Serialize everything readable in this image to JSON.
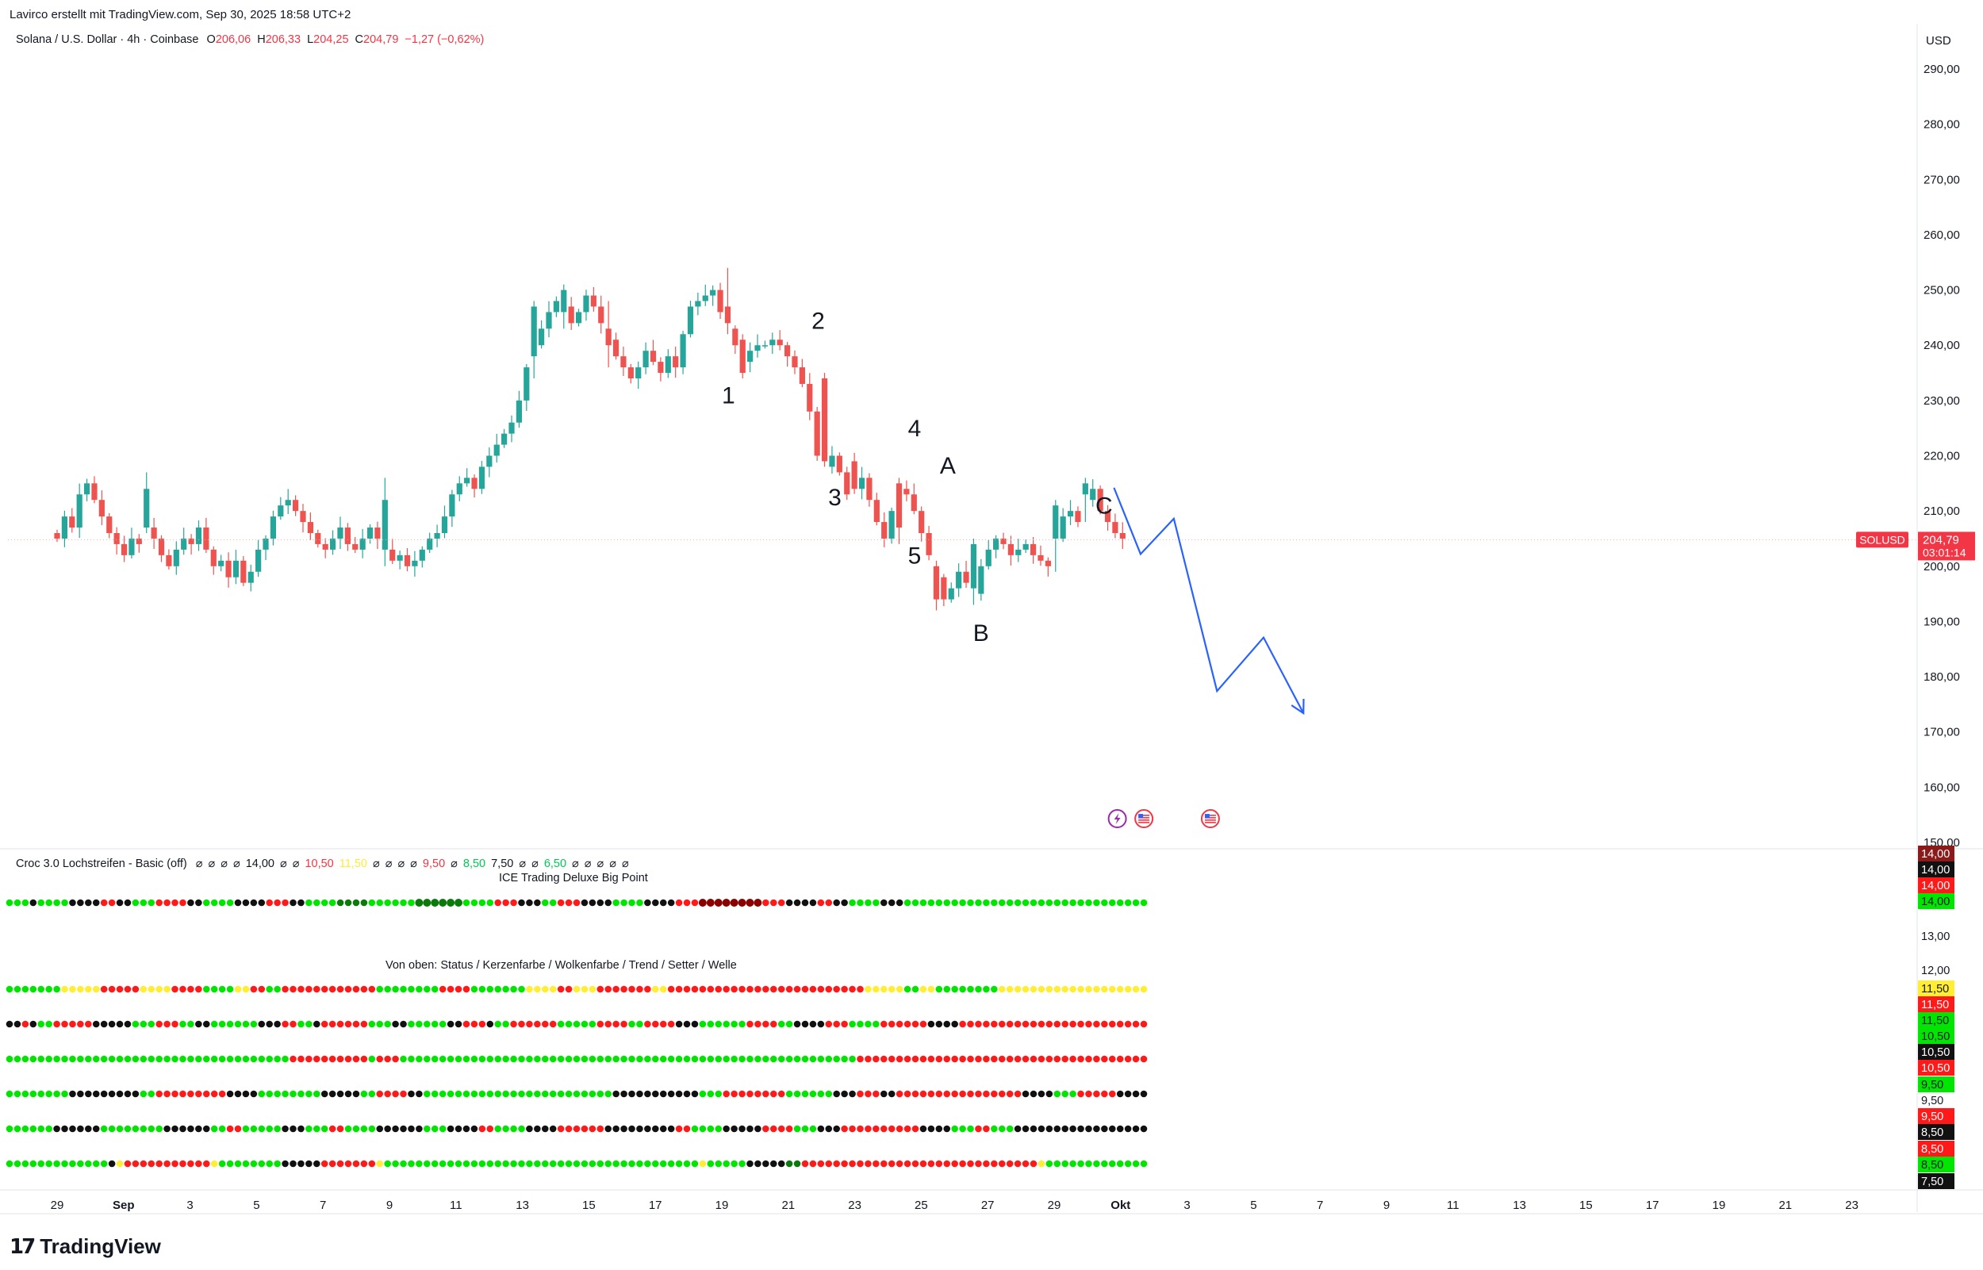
{
  "header": {
    "credit": "Lavirco erstellt mit TradingView.com, Sep 30, 2025 18:58 UTC+2",
    "symbol": "Solana / U.S. Dollar · 4h · Coinbase",
    "o_label": "O",
    "o_value": "206,06",
    "h_label": "H",
    "h_value": "206,33",
    "l_label": "L",
    "l_value": "204,25",
    "c_label": "C",
    "c_value": "204,79",
    "change": "−1,27 (−0,62%)"
  },
  "currency": "USD",
  "last_price": {
    "ticker": "SOLUSD",
    "price": "204,79",
    "countdown": "03:01:14"
  },
  "indicators": {
    "croc_label": "Croc 3.0 Lochstreifen - Basic (off)",
    "croc_params": [
      {
        "t": "⌀",
        "c": "#131722"
      },
      {
        "t": "⌀",
        "c": "#131722"
      },
      {
        "t": "⌀",
        "c": "#131722"
      },
      {
        "t": "⌀",
        "c": "#131722"
      },
      {
        "t": "14,00",
        "c": "#131722"
      },
      {
        "t": "⌀",
        "c": "#131722"
      },
      {
        "t": "⌀",
        "c": "#131722"
      },
      {
        "t": "10,50",
        "c": "#f23645"
      },
      {
        "t": "11,50",
        "c": "#ffeb3b"
      },
      {
        "t": "⌀",
        "c": "#131722"
      },
      {
        "t": "⌀",
        "c": "#131722"
      },
      {
        "t": "⌀",
        "c": "#131722"
      },
      {
        "t": "⌀",
        "c": "#131722"
      },
      {
        "t": "9,50",
        "c": "#f23645"
      },
      {
        "t": "⌀",
        "c": "#131722"
      },
      {
        "t": "8,50",
        "c": "#00c853"
      },
      {
        "t": "7,50",
        "c": "#131722"
      },
      {
        "t": "⌀",
        "c": "#131722"
      },
      {
        "t": "⌀",
        "c": "#131722"
      },
      {
        "t": "6,50",
        "c": "#00c853"
      },
      {
        "t": "⌀",
        "c": "#131722"
      },
      {
        "t": "⌀",
        "c": "#131722"
      },
      {
        "t": "⌀",
        "c": "#131722"
      },
      {
        "t": "⌀",
        "c": "#131722"
      },
      {
        "t": "⌀",
        "c": "#131722"
      }
    ],
    "ice_label": "ICE Trading Deluxe Big Point",
    "rows_label": "Von oben: Status / Kerzenfarbe / Wolkenfarbe / Trend / Setter / Welle"
  },
  "colors": {
    "up": "#26a69a",
    "down": "#ef5350",
    "wave_line": "#2962ff",
    "dot_green": "#00e600",
    "dot_red": "#ff1a1a",
    "dot_black": "#111111",
    "dot_yellow": "#ffee33",
    "dot_darkred": "#8b0000",
    "dot_darkgreen": "#0a7a0a"
  },
  "chart_data": {
    "type": "candlestick",
    "timeframe": "4h",
    "y_axis": {
      "ylim": [
        150,
        293
      ],
      "ticks": [
        "150,00",
        "160,00",
        "170,00",
        "180,00",
        "190,00",
        "200,00",
        "210,00",
        "220,00",
        "230,00",
        "240,00",
        "250,00",
        "260,00",
        "270,00",
        "280,00",
        "290,00"
      ]
    },
    "x_ticks": [
      "29",
      "Sep",
      "3",
      "5",
      "7",
      "9",
      "11",
      "13",
      "15",
      "17",
      "19",
      "21",
      "23",
      "25",
      "27",
      "29",
      "Okt",
      "3",
      "5",
      "7",
      "9",
      "11",
      "13",
      "15",
      "17",
      "19",
      "21",
      "23"
    ],
    "x_span_days": 57,
    "last_candle_day": 32.06,
    "closes": [
      205,
      209,
      207,
      213,
      215,
      212,
      209,
      206,
      204,
      202,
      205,
      204,
      207,
      205,
      202,
      200,
      203,
      205,
      204,
      207,
      203,
      200,
      201,
      198,
      201,
      197,
      199,
      203,
      205,
      209,
      211,
      212,
      210,
      208,
      206,
      204,
      203,
      205,
      207,
      204,
      203,
      205,
      207,
      205,
      203,
      201,
      202,
      200,
      201,
      203,
      205,
      206,
      209,
      213,
      215,
      216,
      214,
      218,
      220,
      222,
      224,
      226,
      230,
      236,
      240,
      243,
      246,
      248,
      247,
      244,
      246,
      249,
      247,
      244,
      241,
      238,
      236,
      234,
      236,
      239,
      237,
      235,
      238,
      236,
      242,
      247,
      248,
      249,
      250,
      246,
      243,
      240,
      237,
      239,
      240,
      240,
      241,
      240,
      238,
      236,
      233,
      228,
      220,
      218,
      220,
      217,
      219,
      214,
      216,
      212,
      208,
      205,
      210,
      214,
      213,
      210,
      206,
      202,
      198,
      194,
      196,
      199,
      197,
      195,
      200,
      203,
      205,
      204,
      202,
      203,
      204,
      202,
      201,
      200,
      205,
      209,
      210,
      208,
      212,
      214,
      210,
      208,
      206,
      205
    ],
    "manual_candles": {
      "12": [
        207,
        214,
        206,
        217
      ],
      "44": [
        203,
        212,
        200,
        216
      ],
      "64": [
        238,
        247,
        234,
        248
      ],
      "68": [
        246,
        250,
        243,
        251
      ],
      "74": [
        243,
        240,
        236,
        248
      ],
      "90": [
        247,
        244,
        242,
        254
      ],
      "92": [
        241,
        235,
        234,
        242
      ],
      "103": [
        234,
        219,
        218,
        235
      ],
      "106": [
        217,
        213,
        212,
        218
      ],
      "113": [
        215,
        207,
        204,
        216
      ],
      "118": [
        200,
        194,
        192,
        201
      ],
      "123": [
        196,
        204,
        193,
        205
      ],
      "134": [
        205,
        211,
        199,
        212
      ],
      "138": [
        213,
        215,
        208,
        216
      ]
    },
    "wave_labels": [
      {
        "text": "1",
        "day": 20.2,
        "price": 229.5
      },
      {
        "text": "2",
        "day": 22.9,
        "price": 243.0
      },
      {
        "text": "3",
        "day": 23.4,
        "price": 211.0
      },
      {
        "text": "4",
        "day": 25.8,
        "price": 223.5
      },
      {
        "text": "5",
        "day": 25.8,
        "price": 200.5
      },
      {
        "text": "A",
        "day": 26.8,
        "price": 216.8
      },
      {
        "text": "B",
        "day": 27.8,
        "price": 186.5
      },
      {
        "text": "C",
        "day": 31.5,
        "price": 209.5
      }
    ],
    "projection_path": [
      [
        31.8,
        214.2
      ],
      [
        32.6,
        202.2
      ],
      [
        33.6,
        208.6
      ],
      [
        34.9,
        177.4
      ],
      [
        36.3,
        187.1
      ],
      [
        37.5,
        173.4
      ]
    ],
    "event_markers": [
      {
        "day": 31.9,
        "price": 154.3,
        "icon": "lightning-icon"
      },
      {
        "day": 32.7,
        "price": 154.3,
        "icon": "us-flag-icon"
      },
      {
        "day": 34.7,
        "price": 154.3,
        "icon": "us-flag-icon"
      }
    ],
    "dot_rows": [
      {
        "row": "ice-big-point",
        "pattern": [
          [
            "g",
            3
          ],
          [
            "k",
            1
          ],
          [
            "g",
            4
          ],
          [
            "k",
            4
          ],
          [
            "r",
            2
          ],
          [
            "k",
            2
          ],
          [
            "g",
            3
          ],
          [
            "r",
            4
          ],
          [
            "k",
            2
          ],
          [
            "g",
            4
          ],
          [
            "k",
            4
          ],
          [
            "r",
            3
          ],
          [
            "k",
            2
          ],
          [
            "g",
            4
          ],
          [
            "d",
            4
          ],
          [
            "g",
            6
          ],
          [
            "K",
            6
          ],
          [
            "g",
            4
          ],
          [
            "r",
            3
          ],
          [
            "k",
            3
          ],
          [
            "g",
            2
          ],
          [
            "r",
            3
          ],
          [
            "k",
            4
          ],
          [
            "g",
            4
          ],
          [
            "k",
            4
          ],
          [
            "r",
            3
          ],
          [
            "D",
            8
          ],
          [
            "r",
            3
          ],
          [
            "k",
            4
          ],
          [
            "r",
            2
          ],
          [
            "k",
            2
          ],
          [
            "g",
            4
          ],
          [
            "k",
            3
          ],
          [
            "g",
            6
          ]
        ]
      },
      {
        "row": "status",
        "pattern": [
          [
            "g",
            7
          ],
          [
            "y",
            5
          ],
          [
            "r",
            5
          ],
          [
            "y",
            4
          ],
          [
            "r",
            4
          ],
          [
            "g",
            4
          ],
          [
            "y",
            2
          ],
          [
            "r",
            2
          ],
          [
            "g",
            2
          ],
          [
            "r",
            12
          ],
          [
            "g",
            8
          ],
          [
            "r",
            4
          ],
          [
            "g",
            7
          ],
          [
            "y",
            4
          ],
          [
            "r",
            2
          ],
          [
            "y",
            3
          ],
          [
            "r",
            7
          ],
          [
            "y",
            2
          ],
          [
            "r",
            25
          ],
          [
            "y",
            5
          ],
          [
            "g",
            2
          ],
          [
            "y",
            2
          ],
          [
            "g",
            8
          ],
          [
            "y",
            1
          ]
        ]
      },
      {
        "row": "candle-color",
        "pattern": [
          [
            "k",
            2
          ],
          [
            "r",
            1
          ],
          [
            "k",
            1
          ],
          [
            "g",
            2
          ],
          [
            "r",
            5
          ],
          [
            "k",
            5
          ],
          [
            "g",
            3
          ],
          [
            "r",
            3
          ],
          [
            "g",
            2
          ],
          [
            "k",
            2
          ],
          [
            "g",
            6
          ],
          [
            "k",
            3
          ],
          [
            "r",
            2
          ],
          [
            "g",
            2
          ],
          [
            "k",
            1
          ],
          [
            "r",
            6
          ],
          [
            "g",
            3
          ],
          [
            "k",
            2
          ],
          [
            "g",
            5
          ],
          [
            "k",
            2
          ],
          [
            "r",
            3
          ],
          [
            "k",
            1
          ],
          [
            "g",
            2
          ],
          [
            "r",
            6
          ],
          [
            "g",
            5
          ],
          [
            "r",
            4
          ],
          [
            "g",
            2
          ],
          [
            "r",
            4
          ],
          [
            "k",
            3
          ],
          [
            "g",
            6
          ],
          [
            "r",
            4
          ],
          [
            "g",
            2
          ],
          [
            "k",
            4
          ],
          [
            "r",
            3
          ],
          [
            "g",
            4
          ],
          [
            "r",
            6
          ],
          [
            "k",
            4
          ],
          [
            "r",
            2
          ]
        ]
      },
      {
        "row": "cloud-color",
        "pattern": [
          [
            "g",
            36
          ],
          [
            "r",
            10
          ],
          [
            "g",
            1
          ],
          [
            "r",
            3
          ],
          [
            "g",
            58
          ],
          [
            "r",
            44
          ]
        ]
      },
      {
        "row": "trend",
        "pattern": [
          [
            "g",
            8
          ],
          [
            "k",
            9
          ],
          [
            "g",
            2
          ],
          [
            "r",
            9
          ],
          [
            "k",
            4
          ],
          [
            "g",
            8
          ],
          [
            "k",
            5
          ],
          [
            "g",
            2
          ],
          [
            "r",
            4
          ],
          [
            "k",
            2
          ],
          [
            "g",
            24
          ],
          [
            "k",
            11
          ],
          [
            "g",
            3
          ],
          [
            "r",
            8
          ],
          [
            "g",
            6
          ],
          [
            "k",
            3
          ],
          [
            "r",
            3
          ],
          [
            "k",
            2
          ],
          [
            "r",
            16
          ],
          [
            "k",
            4
          ],
          [
            "g",
            3
          ],
          [
            "r",
            5
          ],
          [
            "k",
            12
          ],
          [
            "g",
            7
          ]
        ]
      },
      {
        "row": "setter",
        "pattern": [
          [
            "g",
            6
          ],
          [
            "k",
            6
          ],
          [
            "g",
            8
          ],
          [
            "k",
            6
          ],
          [
            "g",
            2
          ],
          [
            "r",
            2
          ],
          [
            "g",
            5
          ],
          [
            "k",
            3
          ],
          [
            "g",
            3
          ],
          [
            "r",
            2
          ],
          [
            "g",
            4
          ],
          [
            "k",
            6
          ],
          [
            "g",
            3
          ],
          [
            "k",
            4
          ],
          [
            "r",
            2
          ],
          [
            "g",
            4
          ],
          [
            "k",
            4
          ],
          [
            "r",
            6
          ],
          [
            "k",
            9
          ],
          [
            "r",
            2
          ],
          [
            "g",
            4
          ],
          [
            "k",
            5
          ],
          [
            "r",
            4
          ],
          [
            "g",
            3
          ],
          [
            "k",
            3
          ],
          [
            "r",
            10
          ],
          [
            "k",
            4
          ],
          [
            "g",
            3
          ],
          [
            "r",
            2
          ],
          [
            "g",
            3
          ],
          [
            "k",
            1
          ]
        ]
      },
      {
        "row": "wave",
        "pattern": [
          [
            "g",
            13
          ],
          [
            "k",
            1
          ],
          [
            "y",
            1
          ],
          [
            "r",
            11
          ],
          [
            "y",
            1
          ],
          [
            "g",
            8
          ],
          [
            "k",
            5
          ],
          [
            "r",
            7
          ],
          [
            "y",
            1
          ],
          [
            "g",
            40
          ],
          [
            "y",
            1
          ],
          [
            "g",
            5
          ],
          [
            "k",
            5
          ],
          [
            "d",
            2
          ],
          [
            "r",
            30
          ],
          [
            "y",
            1
          ],
          [
            "g",
            5
          ]
        ]
      }
    ],
    "dot_count": 145,
    "dot_rows_rgt_labels": [
      {
        "text": "14,00",
        "bg": "#8b1a1a",
        "fg": "#ffffff",
        "price": 14.0
      },
      {
        "text": "14,00",
        "bg": "#111111",
        "fg": "#ffffff",
        "price": 14.0
      },
      {
        "text": "14,00",
        "bg": "#ff1a1a",
        "fg": "#ffffff",
        "price": 14.0
      },
      {
        "text": "14,00",
        "bg": "#00e600",
        "fg": "#131722",
        "price": 14.0
      },
      {
        "text": "13,00",
        "bg": "",
        "fg": "#131722",
        "price": 13.0
      },
      {
        "text": "12,00",
        "bg": "",
        "fg": "#131722",
        "price": 12.0
      },
      {
        "text": "11,50",
        "bg": "#ffee33",
        "fg": "#131722",
        "price": 11.5
      },
      {
        "text": "11,50",
        "bg": "#ff1a1a",
        "fg": "#ffffff",
        "price": 11.5
      },
      {
        "text": "11,50",
        "bg": "#00e600",
        "fg": "#131722",
        "price": 11.5
      },
      {
        "text": "10,50",
        "bg": "#00e600",
        "fg": "#131722",
        "price": 10.5
      },
      {
        "text": "10,50",
        "bg": "#111111",
        "fg": "#ffffff",
        "price": 10.5
      },
      {
        "text": "10,50",
        "bg": "#ff1a1a",
        "fg": "#ffffff",
        "price": 10.5
      },
      {
        "text": "9,50",
        "bg": "#00e600",
        "fg": "#131722",
        "price": 9.5
      },
      {
        "text": "9,50",
        "bg": "",
        "fg": "#131722",
        "price": 9.5
      },
      {
        "text": "9,50",
        "bg": "#ff1a1a",
        "fg": "#ffffff",
        "price": 9.5
      },
      {
        "text": "8,50",
        "bg": "#111111",
        "fg": "#ffffff",
        "price": 8.5
      },
      {
        "text": "8,50",
        "bg": "#ff1a1a",
        "fg": "#ffffff",
        "price": 8.5
      },
      {
        "text": "8,50",
        "bg": "#00e600",
        "fg": "#131722",
        "price": 8.5
      },
      {
        "text": "7,50",
        "bg": "#111111",
        "fg": "#ffffff",
        "price": 7.5
      }
    ]
  },
  "branding": {
    "logo_text": "TradingView"
  }
}
